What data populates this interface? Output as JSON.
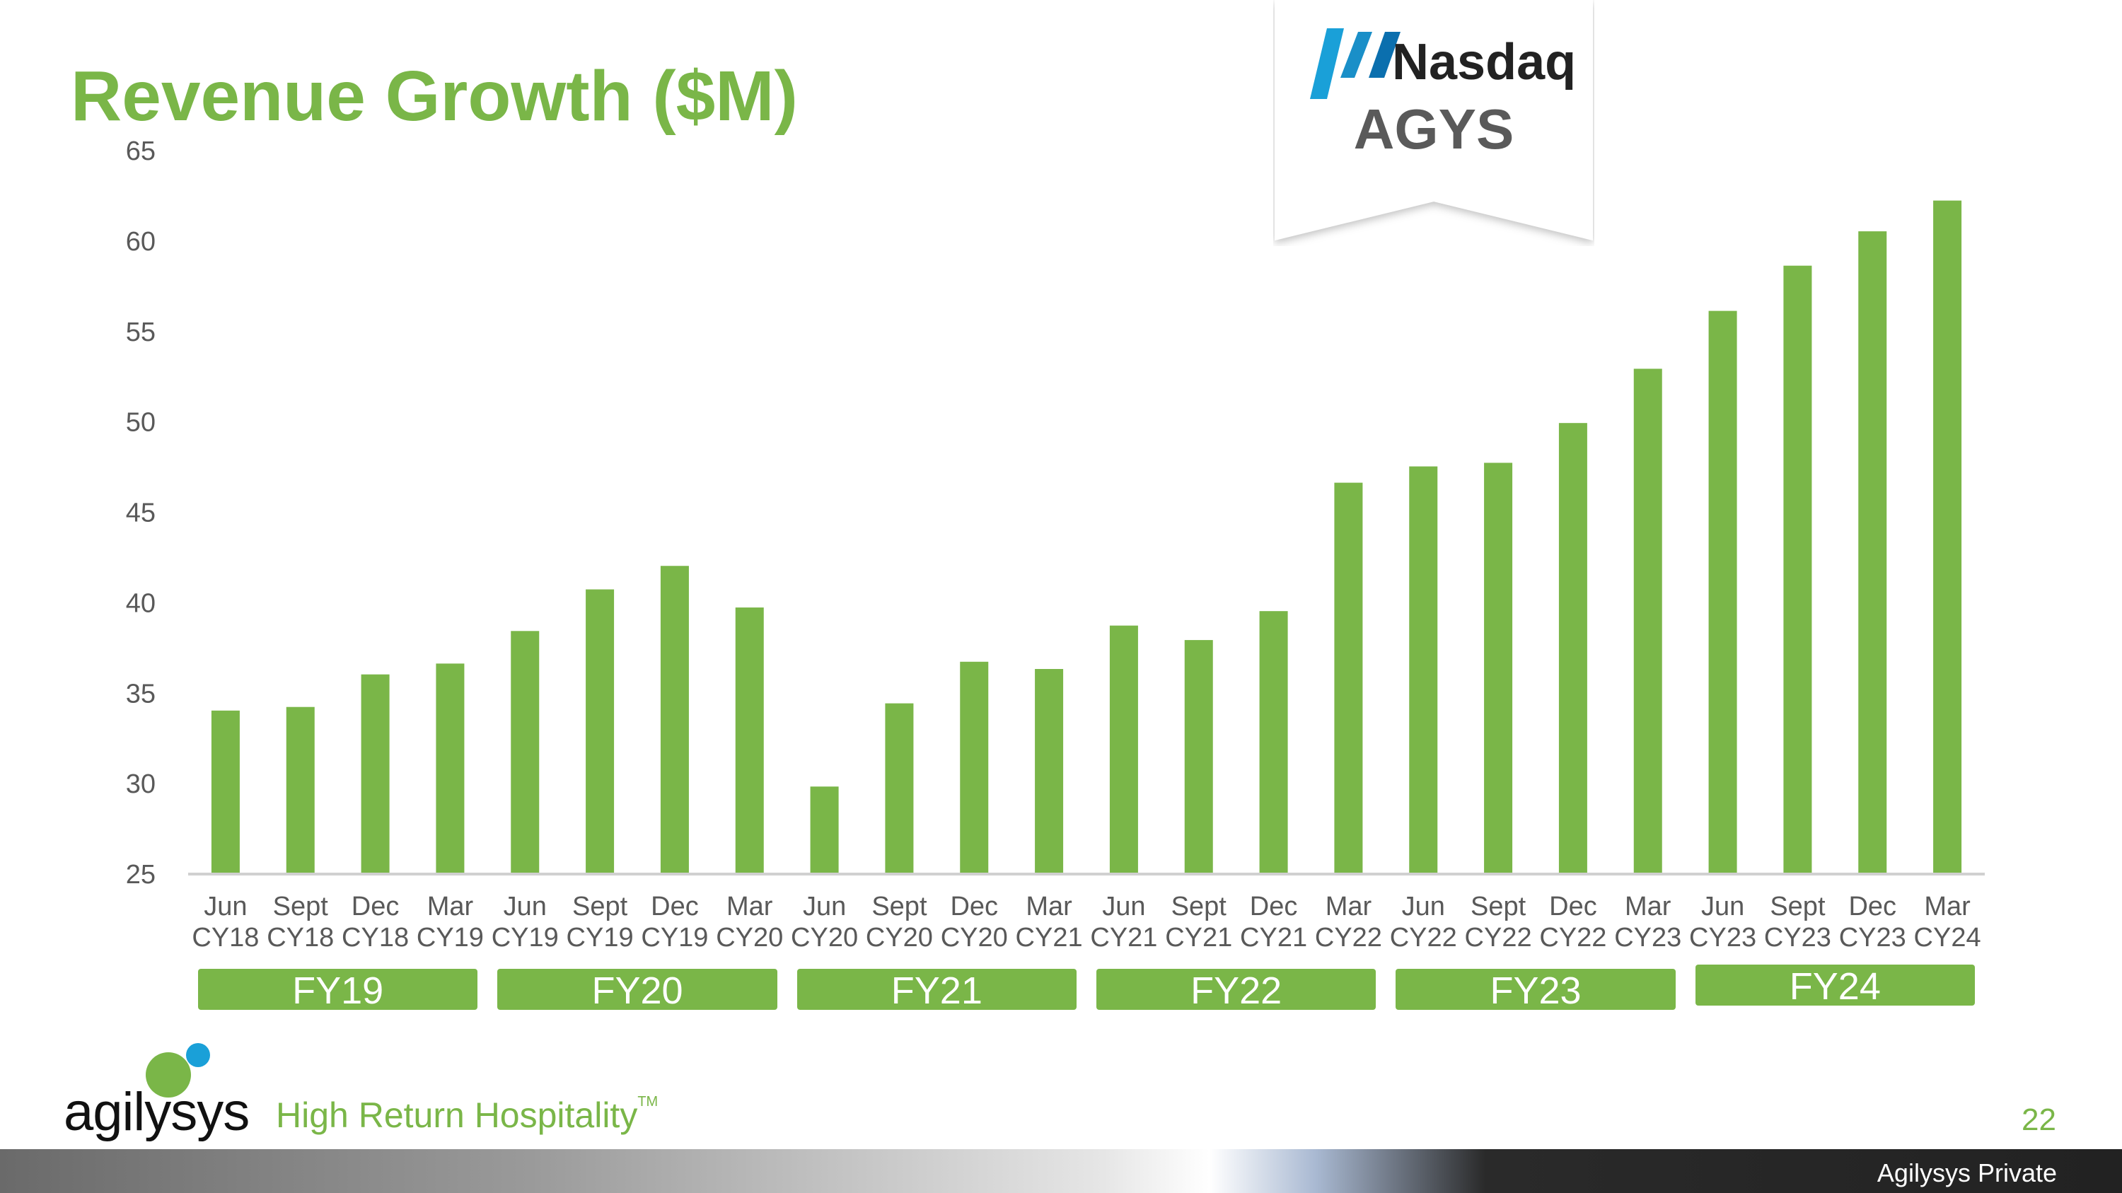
{
  "title": "Revenue Growth ($M)",
  "badge": {
    "name": "Nasdaq",
    "ticker": "AGYS"
  },
  "chart_data": {
    "type": "bar",
    "categories": [
      [
        "Jun",
        "CY18"
      ],
      [
        "Sept",
        "CY18"
      ],
      [
        "Dec",
        "CY18"
      ],
      [
        "Mar",
        "CY19"
      ],
      [
        "Jun",
        "CY19"
      ],
      [
        "Sept",
        "CY19"
      ],
      [
        "Dec",
        "CY19"
      ],
      [
        "Mar",
        "CY20"
      ],
      [
        "Jun",
        "CY20"
      ],
      [
        "Sept",
        "CY20"
      ],
      [
        "Dec",
        "CY20"
      ],
      [
        "Mar",
        "CY21"
      ],
      [
        "Jun",
        "CY21"
      ],
      [
        "Sept",
        "CY21"
      ],
      [
        "Dec",
        "CY21"
      ],
      [
        "Mar",
        "CY22"
      ],
      [
        "Jun",
        "CY22"
      ],
      [
        "Sept",
        "CY22"
      ],
      [
        "Dec",
        "CY22"
      ],
      [
        "Mar",
        "CY23"
      ],
      [
        "Jun",
        "CY23"
      ],
      [
        "Sept",
        "CY23"
      ],
      [
        "Dec",
        "CY23"
      ],
      [
        "Mar",
        "CY24"
      ]
    ],
    "values": [
      34.0,
      34.2,
      36.0,
      36.6,
      38.4,
      40.7,
      42.0,
      39.7,
      29.8,
      34.4,
      36.7,
      36.3,
      38.7,
      37.9,
      39.5,
      46.6,
      47.5,
      47.7,
      49.9,
      52.9,
      56.1,
      58.6,
      60.5,
      62.2
    ],
    "ylim": [
      25,
      65
    ],
    "yticks": [
      25,
      30,
      35,
      40,
      45,
      50,
      55,
      60,
      65
    ],
    "fiscal_years": [
      {
        "label": "FY19",
        "start": 0,
        "end": 3
      },
      {
        "label": "FY20",
        "start": 4,
        "end": 7
      },
      {
        "label": "FY21",
        "start": 8,
        "end": 11
      },
      {
        "label": "FY22",
        "start": 12,
        "end": 15
      },
      {
        "label": "FY23",
        "start": 16,
        "end": 19
      },
      {
        "label": "FY24",
        "start": 20,
        "end": 23
      }
    ],
    "bar_color": "#7ab648",
    "axis_color": "#d0d0d0",
    "label_color": "#595959"
  },
  "footer": {
    "brand": "agilysys",
    "tagline": "High Return Hospitality",
    "trademark": "TM",
    "page_number": "22",
    "classification": "Agilysys Private"
  }
}
